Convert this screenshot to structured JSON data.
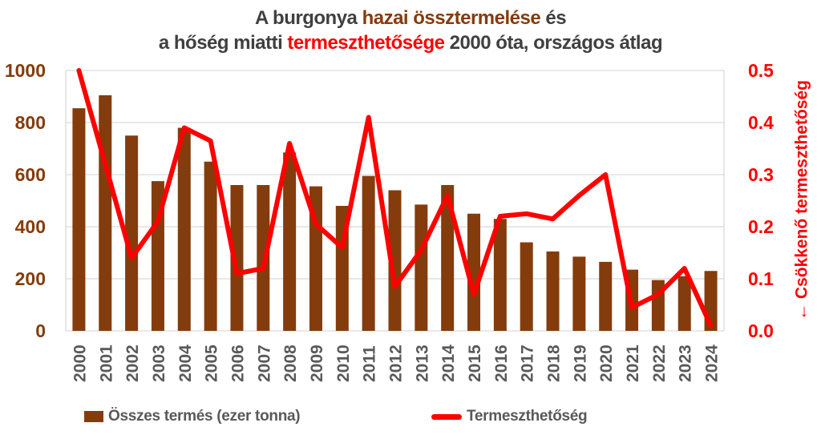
{
  "title": {
    "line1_pre": "A burgonya ",
    "line1_highlight": "hazai össztermelése",
    "line1_post": " és",
    "line2_pre": "a hőség miatti ",
    "line2_highlight": "termeszthetősége",
    "line2_post": " 2000 óta, országos átlag"
  },
  "colors": {
    "bar_brown": "#843C0C",
    "line_red": "#FF0000",
    "title_gray": "#404040",
    "axis_gray": "#595959",
    "grid_gray": "#D9D9D9"
  },
  "chart_data": {
    "type": "combo-bar-line",
    "categories": [
      "2000",
      "2001",
      "2002",
      "2003",
      "2004",
      "2005",
      "2006",
      "2007",
      "2008",
      "2009",
      "2010",
      "2011",
      "2012",
      "2013",
      "2014",
      "2015",
      "2016",
      "2017",
      "2018",
      "2019",
      "2020",
      "2021",
      "2022",
      "2023",
      "2024"
    ],
    "series": [
      {
        "name": "Összes termés (ezer tonna)",
        "type": "bar",
        "axis": "left",
        "color": "#843C0C",
        "values": [
          855,
          905,
          750,
          575,
          780,
          650,
          560,
          560,
          685,
          555,
          480,
          595,
          540,
          485,
          560,
          450,
          430,
          340,
          305,
          285,
          265,
          235,
          195,
          210,
          230
        ]
      },
      {
        "name": "Termeszthetőség",
        "type": "line",
        "axis": "right",
        "color": "#FF0000",
        "values": [
          0.5,
          0.32,
          0.14,
          0.21,
          0.39,
          0.365,
          0.11,
          0.12,
          0.36,
          0.205,
          0.16,
          0.41,
          0.085,
          0.155,
          0.26,
          0.07,
          0.22,
          0.225,
          0.215,
          0.26,
          0.3,
          0.045,
          0.07,
          0.12,
          0.01
        ]
      }
    ],
    "left_axis": {
      "ticks": [
        0,
        200,
        400,
        600,
        800,
        1000
      ],
      "range": [
        0,
        1000
      ]
    },
    "right_axis": {
      "tick_labels": [
        "0.0",
        "0.1",
        "0.2",
        "0.3",
        "0.4",
        "0.5"
      ],
      "range": [
        0,
        0.5
      ],
      "title": "← Csökkenő termeszthetőség"
    },
    "grid": true,
    "legend_position": "bottom"
  }
}
